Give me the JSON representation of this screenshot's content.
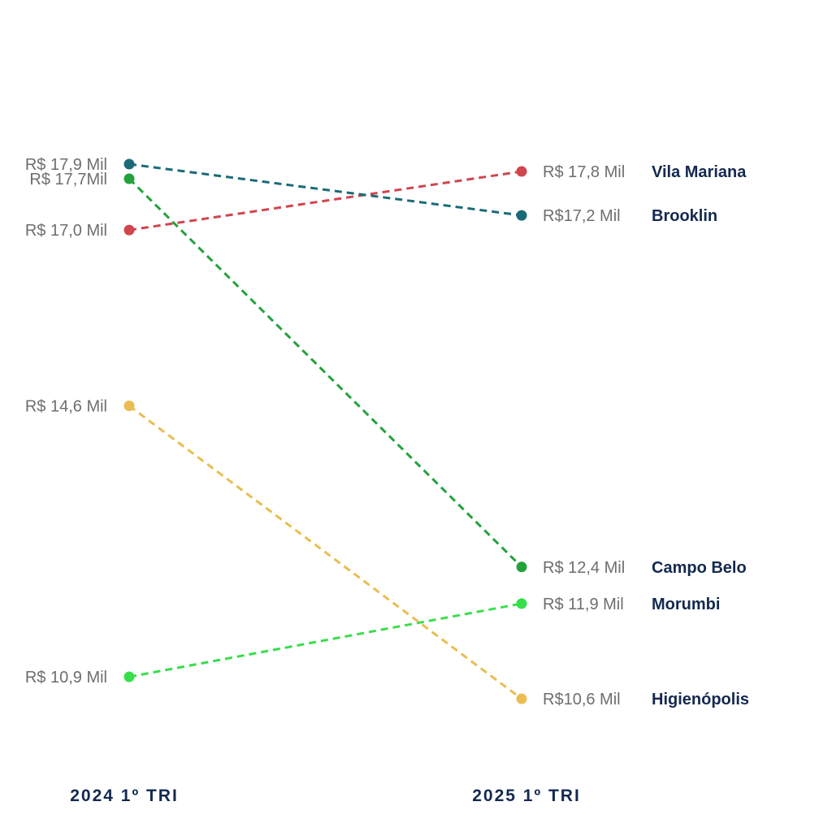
{
  "chart_data": {
    "type": "slope",
    "title": "",
    "periods": [
      "2024 1º TRI",
      "2025 1º TRI"
    ],
    "series": [
      {
        "name": "Vila Mariana",
        "values": [
          17.0,
          17.8
        ],
        "labels": [
          "R$ 17,0 Mil",
          "R$ 17,8 Mil"
        ],
        "color": "#d1454e"
      },
      {
        "name": "Brooklin",
        "values": [
          17.9,
          17.2
        ],
        "labels": [
          "R$ 17,9 Mil",
          "R$17,2 Mil"
        ],
        "color": "#1a6b78"
      },
      {
        "name": "Campo Belo",
        "values": [
          17.7,
          12.4
        ],
        "labels": [
          "R$ 17,7Mil",
          "R$ 12,4 Mil"
        ],
        "color": "#23a23c"
      },
      {
        "name": "Morumbi",
        "values": [
          10.9,
          11.9
        ],
        "labels": [
          "R$ 10,9 Mil",
          "R$ 11,9 Mil"
        ],
        "color": "#36df4a"
      },
      {
        "name": "Higienópolis",
        "values": [
          14.6,
          10.6
        ],
        "labels": [
          "R$ 14,6 Mil",
          "R$10,6 Mil"
        ],
        "color": "#eabd52"
      }
    ],
    "line_style": "dashed",
    "grid": false,
    "legend": "none"
  }
}
